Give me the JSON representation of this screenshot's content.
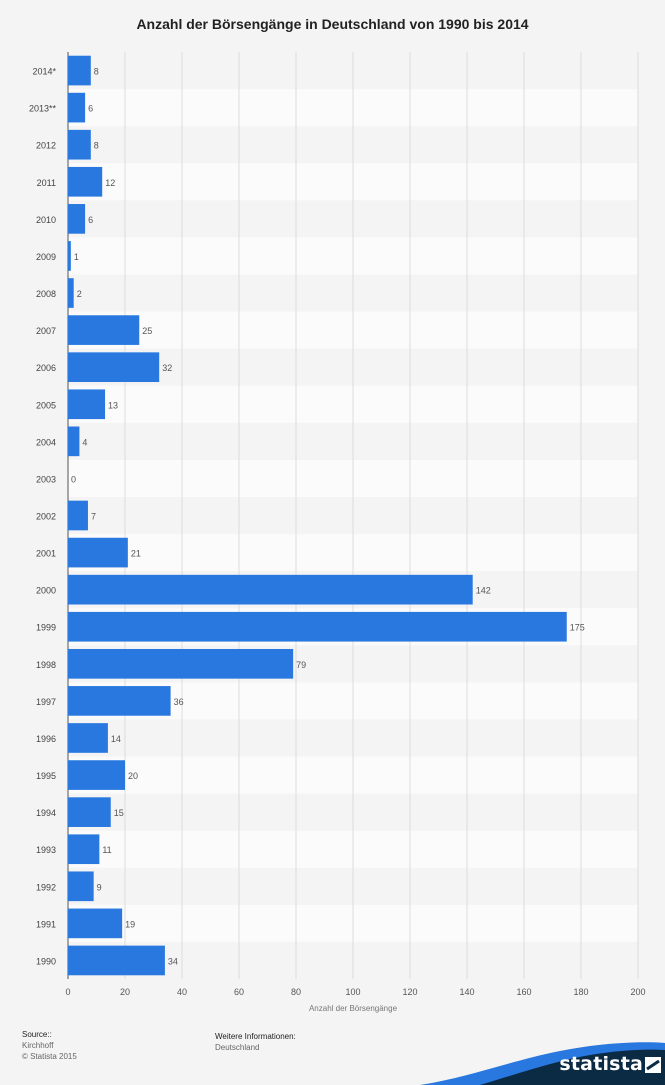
{
  "chart_data": {
    "type": "bar",
    "orientation": "horizontal",
    "title": "Anzahl der Börsengänge in Deutschland von 1990 bis 2014",
    "xlabel": "Anzahl der Börsengänge",
    "categories": [
      "2014*",
      "2013**",
      "2012",
      "2011",
      "2010",
      "2009",
      "2008",
      "2007",
      "2006",
      "2005",
      "2004",
      "2003",
      "2002",
      "2001",
      "2000",
      "1999",
      "1998",
      "1997",
      "1996",
      "1995",
      "1994",
      "1993",
      "1992",
      "1991",
      "1990"
    ],
    "values": [
      8,
      6,
      8,
      12,
      6,
      1,
      2,
      25,
      32,
      13,
      4,
      0,
      7,
      21,
      142,
      175,
      79,
      36,
      14,
      20,
      15,
      11,
      9,
      19,
      34
    ],
    "xlim": [
      0,
      200
    ],
    "ticks": [
      "0",
      "20",
      "40",
      "60",
      "80",
      "100",
      "120",
      "140",
      "160",
      "180",
      "200"
    ],
    "grid": true,
    "bar_color": "#2878e0"
  },
  "footer": {
    "source_heading": "Source::",
    "source_lines": [
      "Kirchhoff",
      "© Statista 2015"
    ],
    "info_heading": "Weitere Informationen:",
    "info_line": "Deutschland"
  },
  "brand": {
    "name": "statista",
    "colors": {
      "dark": "#0b2a44",
      "accent": "#2878e0"
    }
  }
}
